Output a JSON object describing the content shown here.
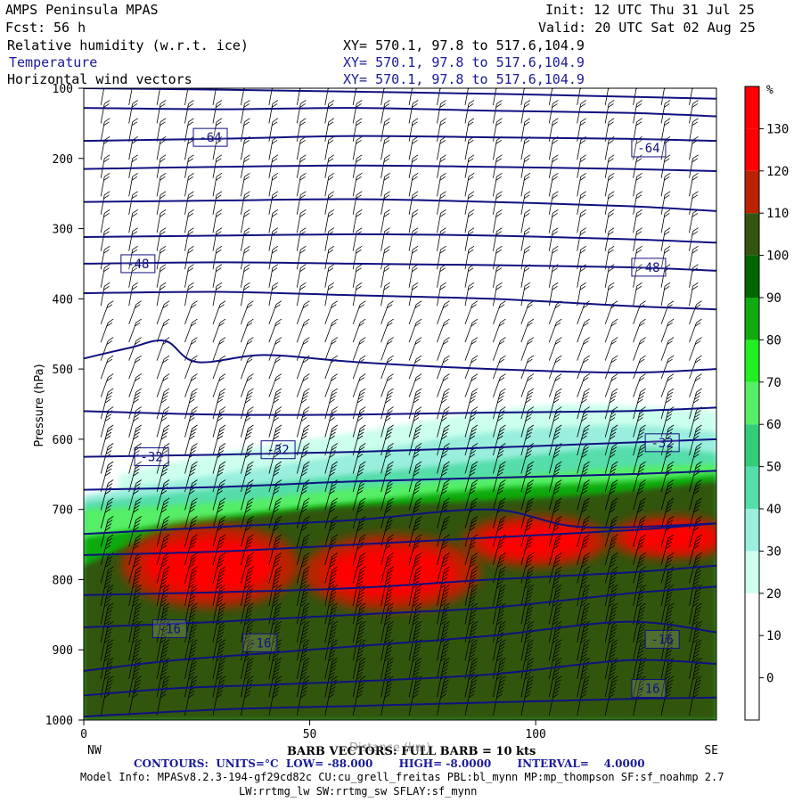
{
  "header": {
    "model": "AMPS Peninsula MPAS",
    "fcst_label": "Fcst:",
    "fcst_value": "56 h",
    "init": "Init: 12 UTC Thu 31 Jul 25",
    "valid": "Valid: 20 UTC Sat 02 Aug 25",
    "field1": "Relative humidity (w.r.t. ice)",
    "field2": "Temperature",
    "field3": "Horizontal wind vectors",
    "xy1": "XY= 570.1, 97.8 to 517.6,104.9",
    "xy2": "XY= 570.1, 97.8 to 517.6,104.9",
    "xy3": "XY= 570.1, 97.8 to 517.6,104.9"
  },
  "chart_data": {
    "type": "heatmap",
    "ylabel": "Pressure (hPa)",
    "xlabel": "Distance (km)",
    "x_range": [
      0,
      140
    ],
    "y_range": [
      100,
      1000
    ],
    "y_ticks": [
      100,
      200,
      300,
      400,
      500,
      600,
      700,
      800,
      900,
      1000
    ],
    "x_ticks": [
      0,
      50,
      100
    ],
    "endpoint_left": "NW",
    "endpoint_right": "SE",
    "colorbar": {
      "unit": "%",
      "levels": [
        0,
        10,
        20,
        30,
        40,
        50,
        60,
        70,
        80,
        90,
        100,
        110,
        120,
        130
      ],
      "colors": [
        "#ffffff",
        "#ffffff",
        "#ffffff",
        "#ccffee",
        "#99eedd",
        "#55ddaa",
        "#33cc77",
        "#55ee66",
        "#22ee22",
        "#11aa11",
        "#006600",
        "#335511",
        "#bb2200",
        "#ff0000",
        "#ff0000"
      ]
    },
    "rh_bands": [
      {
        "level": 30,
        "x": [
          8,
          30,
          60,
          90,
          110,
          140
        ],
        "p_top": [
          650,
          620,
          590,
          560,
          550,
          560
        ],
        "color": "#ccffee"
      },
      {
        "level": 40,
        "x": [
          0,
          20,
          60,
          90,
          120,
          140
        ],
        "p_top": [
          680,
          660,
          620,
          590,
          580,
          590
        ],
        "color": "#99eedd"
      },
      {
        "level": 50,
        "x": [
          0,
          30,
          60,
          90,
          120,
          140
        ],
        "p_top": [
          690,
          670,
          650,
          630,
          610,
          620
        ],
        "color": "#55ddaa"
      },
      {
        "level": 70,
        "x": [
          0,
          30,
          60,
          90,
          120,
          140
        ],
        "p_top": [
          700,
          690,
          670,
          655,
          640,
          635
        ],
        "color": "#55ee66"
      },
      {
        "level": 90,
        "x": [
          0,
          30,
          60,
          90,
          120,
          140
        ],
        "p_top": [
          740,
          710,
          690,
          670,
          660,
          650
        ],
        "color": "#11aa11"
      },
      {
        "level": 110,
        "x": [
          0,
          20,
          50,
          80,
          110,
          140
        ],
        "p_top": [
          780,
          730,
          700,
          690,
          680,
          660
        ],
        "color": "#335511"
      }
    ],
    "rh_max_regions": [
      {
        "x_center": 28,
        "p_center": 780,
        "x_radius": 17,
        "p_radius": 50
      },
      {
        "x_center": 68,
        "p_center": 790,
        "x_radius": 17,
        "p_radius": 45
      },
      {
        "x_center": 100,
        "p_center": 745,
        "x_radius": 14,
        "p_radius": 30
      },
      {
        "x_center": 130,
        "p_center": 740,
        "x_radius": 12,
        "p_radius": 25
      }
    ],
    "temperature_labels": [
      {
        "value": "-64",
        "x": 28,
        "p": 170
      },
      {
        "value": "-64",
        "x": 125,
        "p": 185
      },
      {
        "value": "-48",
        "x": 12,
        "p": 350
      },
      {
        "value": "-48",
        "x": 125,
        "p": 355
      },
      {
        "value": "-32",
        "x": 15,
        "p": 625
      },
      {
        "value": "-32",
        "x": 43,
        "p": 615
      },
      {
        "value": "-32",
        "x": 128,
        "p": 605
      },
      {
        "value": "-16",
        "x": 19,
        "p": 870
      },
      {
        "value": "-16",
        "x": 39,
        "p": 890
      },
      {
        "value": "-16",
        "x": 128,
        "p": 885
      },
      {
        "value": "-16",
        "x": 125,
        "p": 955
      }
    ],
    "temperature_contours": [
      {
        "x": [
          0,
          30,
          60,
          90,
          120,
          140
        ],
        "p": [
          100,
          102,
          105,
          108,
          112,
          115
        ]
      },
      {
        "x": [
          0,
          30,
          60,
          90,
          120,
          140
        ],
        "p": [
          128,
          130,
          128,
          132,
          135,
          140
        ]
      },
      {
        "x": [
          0,
          30,
          60,
          90,
          120,
          140
        ],
        "p": [
          175,
          172,
          168,
          170,
          172,
          175
        ]
      },
      {
        "x": [
          0,
          30,
          60,
          90,
          120,
          140
        ],
        "p": [
          215,
          212,
          210,
          212,
          215,
          218
        ]
      },
      {
        "x": [
          0,
          30,
          60,
          90,
          120,
          140
        ],
        "p": [
          262,
          260,
          258,
          262,
          268,
          275
        ]
      },
      {
        "x": [
          0,
          30,
          60,
          90,
          120,
          140
        ],
        "p": [
          312,
          310,
          308,
          310,
          315,
          320
        ]
      },
      {
        "x": [
          0,
          30,
          60,
          90,
          120,
          140
        ],
        "p": [
          350,
          348,
          350,
          352,
          355,
          360
        ]
      },
      {
        "x": [
          0,
          30,
          60,
          90,
          120,
          140
        ],
        "p": [
          392,
          390,
          395,
          400,
          410,
          415
        ]
      },
      {
        "x": [
          0,
          10,
          18,
          25,
          40,
          60,
          90,
          120,
          140
        ],
        "p": [
          485,
          470,
          460,
          490,
          480,
          490,
          500,
          505,
          500
        ]
      },
      {
        "x": [
          0,
          30,
          60,
          90,
          120,
          140
        ],
        "p": [
          560,
          565,
          565,
          562,
          560,
          555
        ]
      },
      {
        "x": [
          0,
          30,
          60,
          90,
          120,
          140
        ],
        "p": [
          625,
          622,
          618,
          612,
          605,
          600
        ]
      },
      {
        "x": [
          0,
          30,
          60,
          90,
          120,
          140
        ],
        "p": [
          672,
          668,
          660,
          655,
          650,
          645
        ]
      },
      {
        "x": [
          0,
          30,
          60,
          90,
          110,
          140
        ],
        "p": [
          735,
          725,
          715,
          700,
          725,
          720
        ]
      },
      {
        "x": [
          0,
          30,
          60,
          90,
          120,
          140
        ],
        "p": [
          765,
          760,
          750,
          740,
          730,
          720
        ]
      },
      {
        "x": [
          0,
          30,
          60,
          90,
          120,
          140
        ],
        "p": [
          822,
          818,
          812,
          800,
          790,
          780
        ]
      },
      {
        "x": [
          0,
          30,
          60,
          90,
          120,
          140
        ],
        "p": [
          868,
          860,
          850,
          840,
          820,
          810
        ]
      },
      {
        "x": [
          0,
          20,
          40,
          60,
          90,
          120,
          140
        ],
        "p": [
          930,
          915,
          905,
          895,
          880,
          860,
          875
        ]
      },
      {
        "x": [
          0,
          20,
          40,
          60,
          90,
          120,
          140
        ],
        "p": [
          965,
          955,
          950,
          945,
          935,
          915,
          920
        ]
      },
      {
        "x": [
          0,
          30,
          60,
          90,
          120,
          140
        ],
        "p": [
          995,
          985,
          980,
          975,
          970,
          968
        ]
      }
    ],
    "wind_barbs": "barbs plotted on grid; pole length scale = 10 kts"
  },
  "footer": {
    "barb_line": "BARB VECTORS: FULL BARB = 10 kts",
    "distance_label": "Distance (km)",
    "contours_line": "CONTOURS:  UNITS=°C  LOW= -88.000       HIGH= -8.0000       INTERVAL=    4.0000",
    "model_info1": "Model Info: MPASv8.2.3-194-gf29cd82c CU:cu_grell_freitas PBL:bl_mynn MP:mp_thompson SF:sf_noahmp 2.7",
    "model_info2": "LW:rrtmg_lw SW:rrtmg_sw SFLAY:sf_mynn"
  }
}
